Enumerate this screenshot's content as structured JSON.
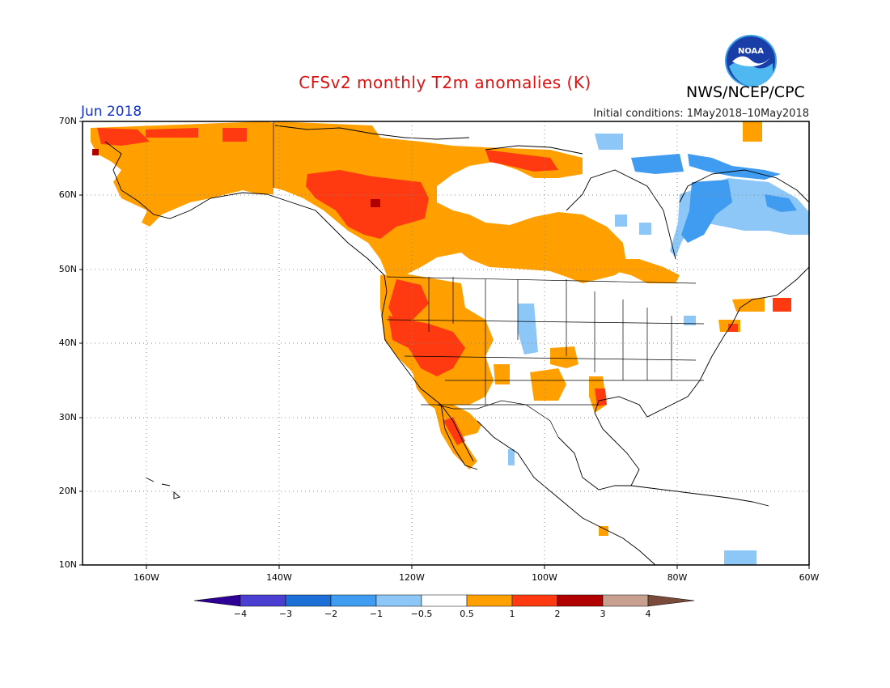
{
  "title": "CFSv2 monthly T2m anomalies (K)",
  "period": "Jun 2018",
  "initial_conditions": "Initial conditions: 1May2018–10May2018",
  "organization": "NWS/NCEP/CPC",
  "logo_text": "NOAA",
  "map": {
    "lon_range": [
      -170,
      -60
    ],
    "lat_range": [
      10,
      70
    ],
    "lat_labels": [
      "70N",
      "60N",
      "50N",
      "40N",
      "30N",
      "20N",
      "10N"
    ],
    "lon_labels": [
      "160W",
      "140W",
      "120W",
      "100W",
      "80W",
      "60W"
    ]
  },
  "legend": {
    "levels": [
      "−4",
      "−3",
      "−2",
      "−1",
      "−0.5",
      "0.5",
      "1",
      "2",
      "3",
      "4"
    ],
    "colors": [
      "#2d0096",
      "#4a3fd0",
      "#1c6fd6",
      "#3f9cf0",
      "#8cc7f7",
      "#ffffff",
      "#ffa000",
      "#ff3a10",
      "#b00000",
      "#c8a090",
      "#7a4a3a"
    ]
  },
  "colors": {
    "title": "#e01010",
    "period": "#1030d0",
    "positive_weak": "#ffa000",
    "positive_mid": "#ff3a10",
    "positive_strong": "#b00000",
    "negative_weak": "#8cc7f7",
    "negative_mid": "#3f9cf0"
  }
}
